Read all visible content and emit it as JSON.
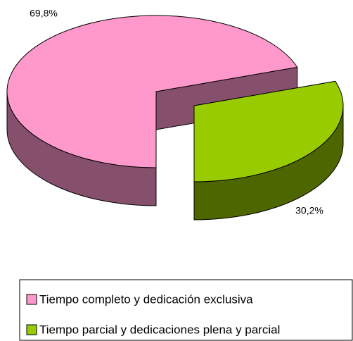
{
  "chart_data": {
    "type": "pie",
    "categories": [
      "Tiempo completo y dedicación exclusiva",
      "Tiempo parcial y dedicaciones plena y parcial"
    ],
    "values": [
      69.8,
      30.2
    ],
    "value_labels": [
      "69,8%",
      "30,2%"
    ],
    "colors": [
      "#ff99cc",
      "#99cc00"
    ],
    "side_colors": [
      "#86506c",
      "#4d6600"
    ],
    "legend": "bottom"
  }
}
